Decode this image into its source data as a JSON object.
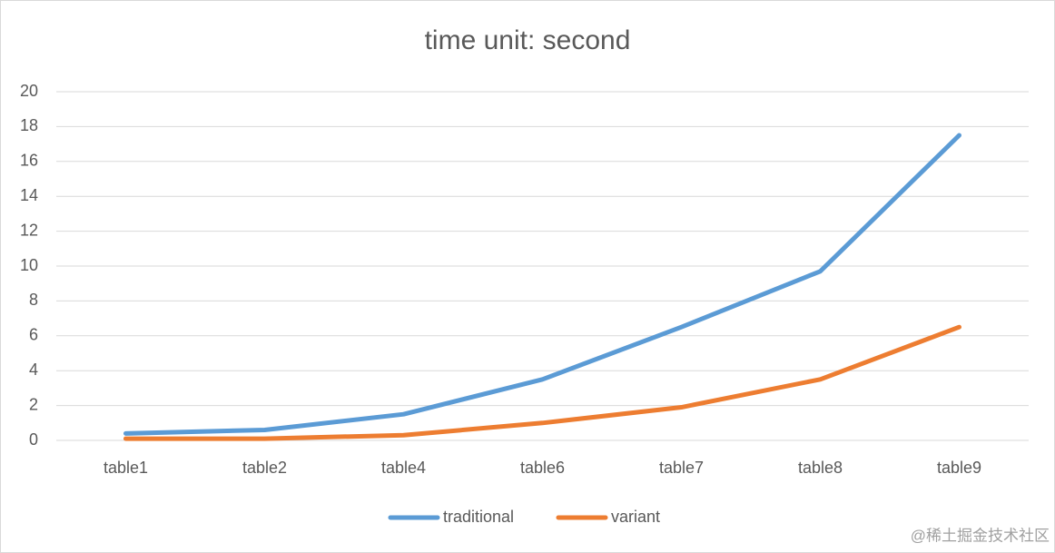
{
  "chart_data": {
    "type": "line",
    "title": "time unit: second",
    "categories": [
      "table1",
      "table2",
      "table4",
      "table6",
      "table7",
      "table8",
      "table9"
    ],
    "series": [
      {
        "name": "traditional",
        "color": "#5b9bd5",
        "values": [
          0.4,
          0.6,
          1.5,
          3.5,
          6.5,
          9.7,
          17.5
        ]
      },
      {
        "name": "variant",
        "color": "#ed7d31",
        "values": [
          0.1,
          0.1,
          0.3,
          1.0,
          1.9,
          3.5,
          6.5
        ]
      }
    ],
    "ylim": [
      0,
      20
    ],
    "yticks": [
      0,
      2,
      4,
      6,
      8,
      10,
      12,
      14,
      16,
      18,
      20
    ],
    "grid": true,
    "legend": "bottom"
  },
  "watermark": "@稀土掘金技术社区"
}
